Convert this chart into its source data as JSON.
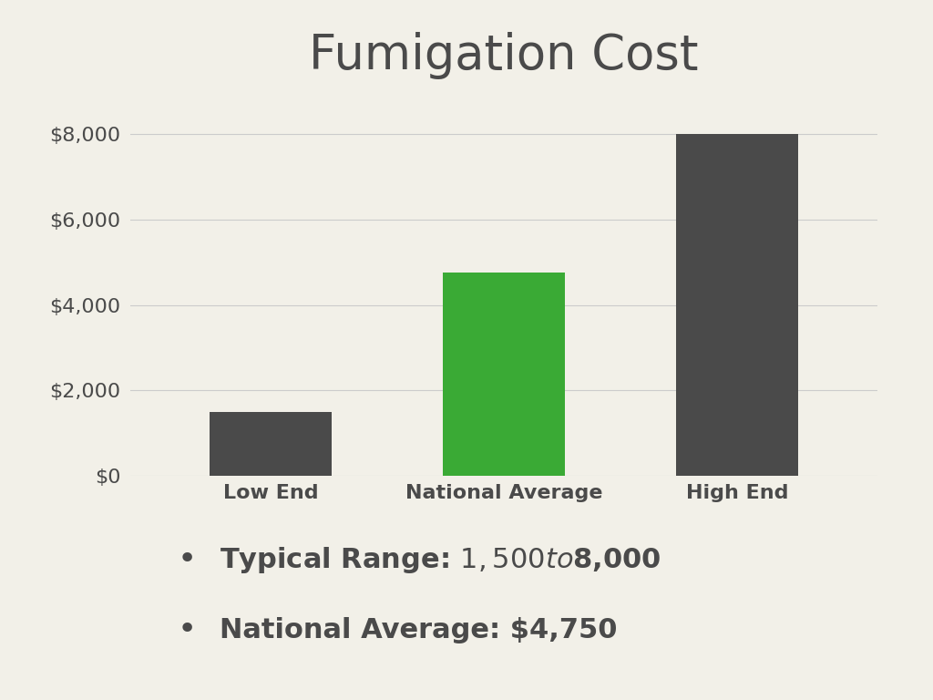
{
  "title": "Fumigation Cost",
  "categories": [
    "Low End",
    "National Average",
    "High End"
  ],
  "values": [
    1500,
    4750,
    8000
  ],
  "bar_colors": [
    "#4a4a4a",
    "#3aaa35",
    "#4a4a4a"
  ],
  "background_color": "#f2f0e8",
  "title_fontsize": 38,
  "tick_label_fontsize": 16,
  "ytick_fontsize": 16,
  "ylim": [
    0,
    9000
  ],
  "yticks": [
    0,
    2000,
    4000,
    6000,
    8000
  ],
  "ytick_labels": [
    "$0",
    "$2,000",
    "$4,000",
    "$6,000",
    "$8,000"
  ],
  "grid_color": "#cccccc",
  "text_color": "#4a4a4a",
  "bullet_points": [
    "Typical Range: $1,500 to $8,000",
    "National Average: $4,750"
  ],
  "bullet_fontsize": 22,
  "bar_width": 0.52
}
